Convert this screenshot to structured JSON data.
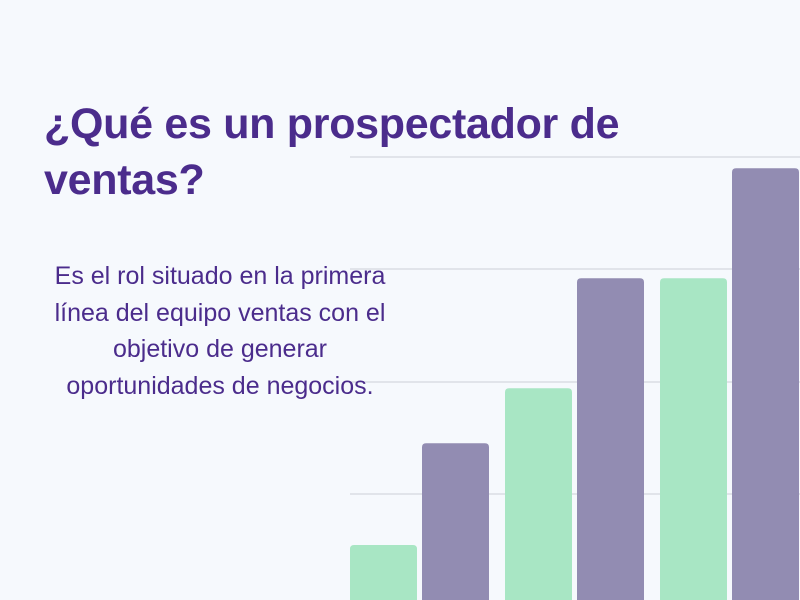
{
  "colors": {
    "background": "#F6F9FD",
    "text": "#4B2C8C",
    "gridline": "#CCCED6",
    "bar_green": "#A8E6C4",
    "bar_purple": "#928CB2"
  },
  "slide": {
    "title": "¿Qué es un prospectador de ventas?",
    "body": "Es el rol situado en la primera línea del equipo ventas con el objetivo de generar oportunidades de negocios."
  },
  "decorative_chart": {
    "type": "bar",
    "gridline_count": 4,
    "series": [
      {
        "color_key": "bar_green",
        "values": [
          1,
          3.85,
          5.85
        ]
      },
      {
        "color_key": "bar_purple",
        "values": [
          2.85,
          5.85,
          7.85
        ]
      }
    ],
    "max_value": 8
  }
}
